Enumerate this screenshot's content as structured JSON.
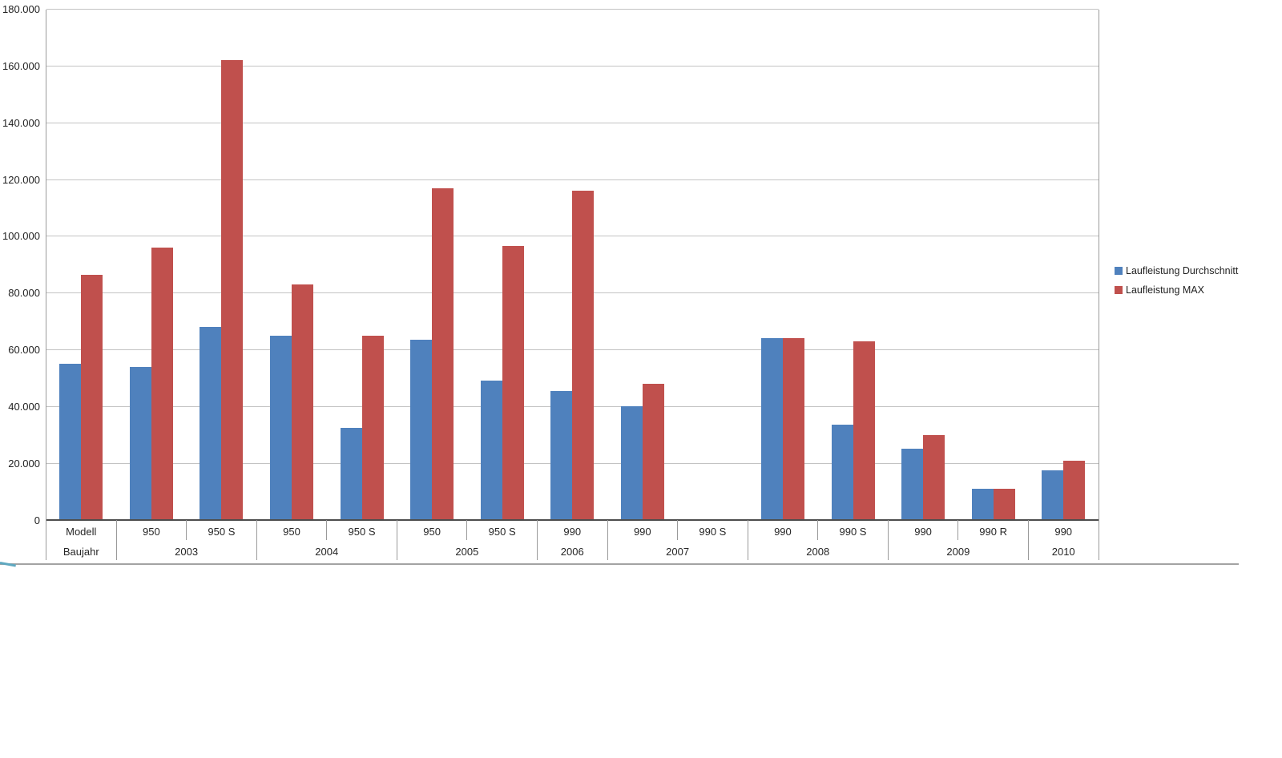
{
  "chart_data": {
    "type": "bar",
    "title": "",
    "grid": true,
    "legend_position": "right",
    "y_axis": {
      "min": 0,
      "max": 180000,
      "step": 20000,
      "tick_labels": [
        "0",
        "20.000",
        "40.000",
        "60.000",
        "80.000",
        "100.000",
        "120.000",
        "140.000",
        "160.000",
        "180.000"
      ]
    },
    "x_axis": {
      "model_row_header": "Modell",
      "year_row_header": "Baujahr",
      "categories_model": [
        "Modell",
        "950",
        "950 S",
        "950",
        "950 S",
        "950",
        "950 S",
        "990",
        "990",
        "990 S",
        "990",
        "990 S",
        "990",
        "990 R",
        "990"
      ],
      "year_groups": [
        {
          "label": "Baujahr",
          "span": 1
        },
        {
          "label": "2003",
          "span": 2
        },
        {
          "label": "2004",
          "span": 2
        },
        {
          "label": "2005",
          "span": 2
        },
        {
          "label": "2006",
          "span": 1
        },
        {
          "label": "2007",
          "span": 2
        },
        {
          "label": "2008",
          "span": 2
        },
        {
          "label": "2009",
          "span": 2
        },
        {
          "label": "2010",
          "span": 1
        }
      ]
    },
    "series": [
      {
        "name": "Laufleistung Durchschnitt",
        "color": "#4F81BD",
        "values": [
          55000,
          54000,
          68000,
          65000,
          32500,
          63500,
          49000,
          45500,
          40000,
          null,
          64000,
          33500,
          25000,
          11000,
          17500
        ]
      },
      {
        "name": "Laufleistung MAX",
        "color": "#C0504D",
        "values": [
          86500,
          96000,
          162000,
          83000,
          65000,
          117000,
          96500,
          116000,
          48000,
          null,
          64000,
          63000,
          30000,
          11000,
          21000
        ]
      }
    ]
  },
  "colors": {
    "series_blue": "#4F81BD",
    "series_red": "#C0504D",
    "gridline": "#c3c3c3",
    "axis_line": "#4d4d4d",
    "tick_line": "#9a9a9a",
    "text": "#1f1f1f",
    "background": "#ffffff",
    "sheet_line": "#a3a3a3",
    "corner_mark": "#5fa8c0"
  }
}
